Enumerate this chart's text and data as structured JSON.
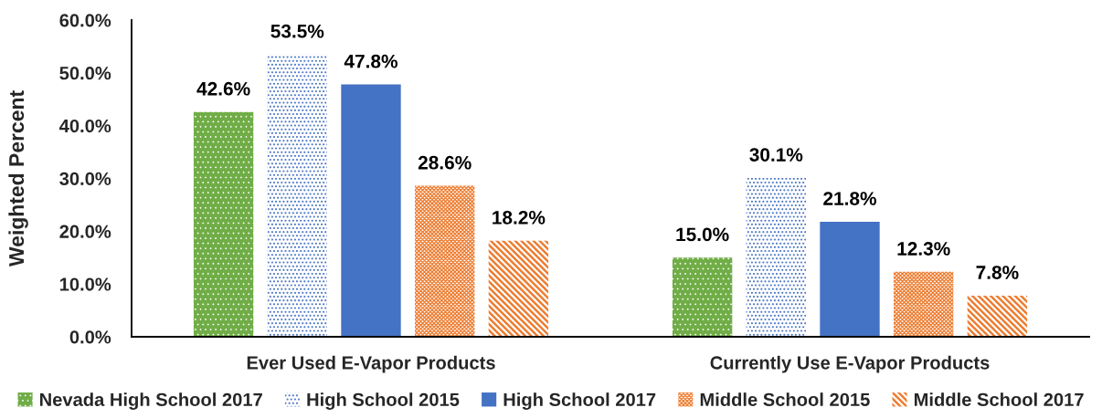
{
  "chart_data": {
    "type": "bar",
    "ylabel": "Weighted Percent",
    "categories": [
      "Ever Used E-Vapor Products",
      "Currently Use E-Vapor Products"
    ],
    "series": [
      {
        "name": "Nevada High School 2017",
        "color": "#70ad47",
        "values": [
          42.6,
          15.0
        ],
        "value_labels": [
          "42.6%",
          "15.0%"
        ]
      },
      {
        "name": "High School 2015",
        "color": "#4472c4",
        "values": [
          53.5,
          30.1
        ],
        "value_labels": [
          "53.5%",
          "30.1%"
        ]
      },
      {
        "name": "High School 2017",
        "color": "#4472c4",
        "values": [
          47.8,
          21.8
        ],
        "value_labels": [
          "47.8%",
          "21.8%"
        ]
      },
      {
        "name": "Middle School 2015",
        "color": "#ed7d31",
        "values": [
          28.6,
          12.3
        ],
        "value_labels": [
          "28.6%",
          "12.3%"
        ]
      },
      {
        "name": "Middle School 2017",
        "color": "#ed7d31",
        "values": [
          18.2,
          7.8
        ],
        "value_labels": [
          "18.2%",
          "7.8%"
        ]
      }
    ],
    "ylim": [
      0,
      60
    ],
    "yticks": [
      {
        "value": 0,
        "label": "0.0%"
      },
      {
        "value": 10,
        "label": "10.0%"
      },
      {
        "value": 20,
        "label": "20.0%"
      },
      {
        "value": 30,
        "label": "30.0%"
      },
      {
        "value": 40,
        "label": "40.0%"
      },
      {
        "value": 50,
        "label": "50.0%"
      },
      {
        "value": 60,
        "label": "60.0%"
      }
    ],
    "grid": false,
    "legend": "bottom"
  }
}
